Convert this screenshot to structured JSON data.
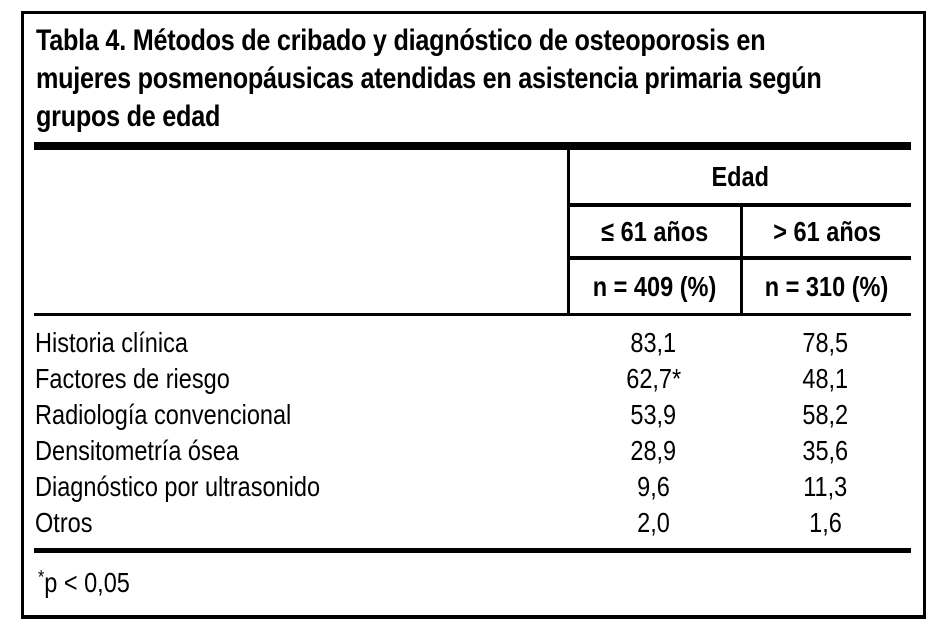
{
  "title": {
    "lines": [
      "Tabla 4. Métodos de cribado y diagnóstico de osteoporosis en",
      "mujeres posmenopáusicas atendidas en asistencia primaria según",
      "grupos de edad"
    ]
  },
  "table": {
    "group_header": "Edad",
    "columns": [
      {
        "age_group": "≤ 61 años",
        "n_label": "n = 409 (%)"
      },
      {
        "age_group": "> 61 años",
        "n_label": "n = 310 (%)"
      }
    ],
    "rows": [
      {
        "label": "Historia clínica",
        "le61": "83,1",
        "gt61": "78,5"
      },
      {
        "label": "Factores de riesgo",
        "le61": "62,7*",
        "gt61": "48,1"
      },
      {
        "label": "Radiología convencional",
        "le61": "53,9",
        "gt61": "58,2"
      },
      {
        "label": "Densitometría ósea",
        "le61": "28,9",
        "gt61": "35,6"
      },
      {
        "label": "Diagnóstico por ultrasonido",
        "le61": "9,6",
        "gt61": "11,3"
      },
      {
        "label": "Otros",
        "le61": "2,0",
        "gt61": "1,6"
      }
    ]
  },
  "footnote": {
    "marker": "*",
    "text": "p < 0,05"
  },
  "colors": {
    "ink": "#000000",
    "background": "#ffffff"
  }
}
